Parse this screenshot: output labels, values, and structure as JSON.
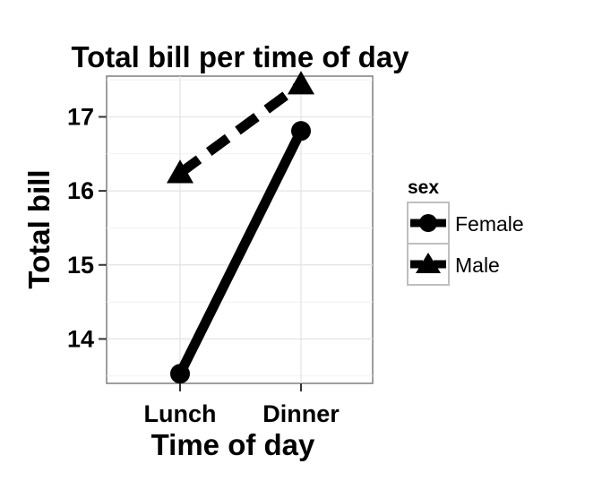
{
  "chart_data": {
    "type": "line",
    "title": "Total bill per time of day",
    "xlabel": "Time of day",
    "ylabel": "Total bill",
    "categories": [
      "Lunch",
      "Dinner"
    ],
    "ylim": [
      13.4,
      17.55
    ],
    "yticks": [
      14,
      15,
      16,
      17
    ],
    "grid": true,
    "legend": {
      "title": "sex",
      "placement": "right"
    },
    "series": [
      {
        "name": "Female",
        "values": [
          13.53,
          16.81
        ],
        "marker": "circle",
        "line": "solid",
        "color": "#000000"
      },
      {
        "name": "Male",
        "values": [
          16.24,
          17.44
        ],
        "marker": "triangle",
        "line": "dashed",
        "color": "#000000"
      }
    ]
  }
}
